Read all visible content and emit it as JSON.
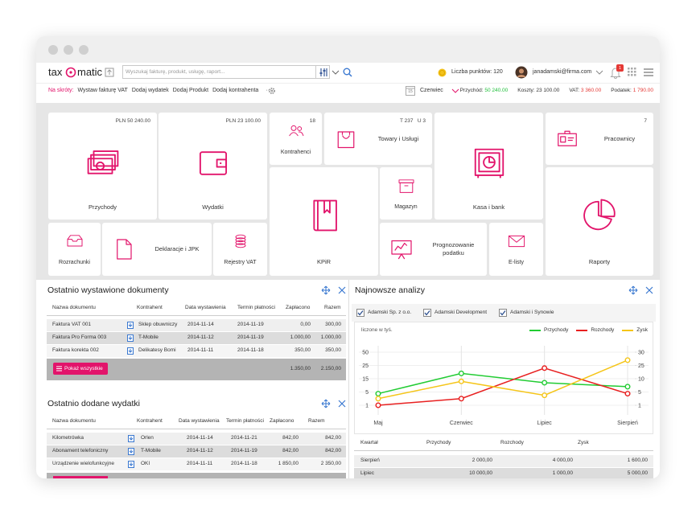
{
  "header": {
    "logo_left": "tax",
    "logo_right": "matic",
    "search_placeholder": "Wyszukaj fakturę, produkt, usługę, raport...",
    "points": "Liczba punktów: 120",
    "user": "janadamski@firma.com",
    "notifications": "1"
  },
  "shortcuts": {
    "label": "Na skróty:",
    "links": [
      "Wystaw fakturę VAT",
      "Dodaj wydatek",
      "Dodaj Produkt",
      "Dodaj kontrahenta"
    ],
    "more": "···"
  },
  "summary": {
    "calendar_day": "15",
    "month": "Czerwiec",
    "items": [
      {
        "label": "Przychód:",
        "value": "50 240.00"
      },
      {
        "label": "Koszty:",
        "value": "23 100.00"
      },
      {
        "label": "VAT:",
        "value": "3 360.00"
      },
      {
        "label": "Podatek:",
        "value": "1 790.00"
      }
    ]
  },
  "tiles": [
    {
      "label": "Przychody",
      "info": "PLN 50 240.00"
    },
    {
      "label": "Wydatki",
      "info": "PLN 23 100.00"
    },
    {
      "label": "Kontrahenci",
      "info": "18"
    },
    {
      "label": "Towary i Usługi",
      "info": "T 237   U 3"
    },
    {
      "label": "Kasa i bank"
    },
    {
      "label": "Pracownicy",
      "info": "7"
    },
    {
      "label": "KPiR"
    },
    {
      "label": "Magazyn"
    },
    {
      "label": "Raporty"
    },
    {
      "label": "Rozrachunki"
    },
    {
      "label": "Deklaracje i JPK"
    },
    {
      "label": "Rejestry VAT"
    },
    {
      "label": "Prognozowanie podatku"
    },
    {
      "label": "E-listy"
    }
  ],
  "documents": {
    "title": "Ostatnio wystawione dokumenty",
    "columns": [
      "Nazwa dokumentu",
      "Kontrahent",
      "Data wystawienia",
      "Termin płatności",
      "Zapłacono",
      "Razem"
    ],
    "rows": [
      [
        "Faktura VAT 001",
        "Sklep obuwniczy",
        "2014-11-14",
        "2014-11-19",
        "0,00",
        "300,00"
      ],
      [
        "Faktura Pro Forma 003",
        "T-Mobile",
        "2014-11-12",
        "2014-11-19",
        "1.000,00",
        "1.000,00"
      ],
      [
        "Faktura korekta 002",
        "Delikatesy Bomi",
        "2014-11-11",
        "2014-11-18",
        "350,00",
        "350,00"
      ]
    ],
    "button": "Pokaż wszystkie",
    "totals": [
      "1.350,00",
      "2.150,00"
    ]
  },
  "expenses": {
    "title": "Ostatnio dodane wydatki",
    "columns": [
      "Nazwa dokumentu",
      "Kontrahent",
      "Data wystawienia",
      "Termin płatności",
      "Zapłacono",
      "Razem"
    ],
    "rows": [
      [
        "Kilometrówka",
        "Orlen",
        "2014-11-14",
        "2014-11-21",
        "842,00",
        "842,00"
      ],
      [
        "Abonament telefoniczny",
        "T-Mobile",
        "2014-11-12",
        "2014-11-19",
        "842,00",
        "842,00"
      ],
      [
        "Urządzenie wielofunkcyjne",
        "OKI",
        "2014-11-11",
        "2014-11-18",
        "1 850,00",
        "2 350,00"
      ]
    ]
  },
  "analysis": {
    "title": "Najnowsze analizy",
    "filters": [
      "Adamski Sp. z o.o.",
      "Adamski Development",
      "Adamski i Synowie"
    ],
    "table": {
      "columns": [
        "Kwartał",
        "Przychody",
        "Rozchody",
        "Zysk"
      ],
      "rows": [
        [
          "Sierpień",
          "2 000,00",
          "4 000,00",
          "1 600,00"
        ],
        [
          "Lipiec",
          "10 000,00",
          "1 000,00",
          "5 000,00"
        ]
      ]
    }
  },
  "chart_data": {
    "type": "line",
    "subtitle": "liczone w tyś.",
    "categories": [
      "Maj",
      "Czerwiec",
      "Lipiec",
      "Sierpień"
    ],
    "series": [
      {
        "name": "Przychody",
        "color": "#22cc33",
        "values": [
          4.5,
          19,
          12,
          9
        ]
      },
      {
        "name": "Rozchody",
        "color": "#e82020",
        "values": [
          1,
          3,
          23,
          4.5
        ]
      },
      {
        "name": "Zysk",
        "color": "#f5c518",
        "axis": "y2",
        "values": [
          3,
          9,
          4,
          27
        ]
      }
    ],
    "ylim": [
      1,
      50
    ],
    "yticks": [
      50,
      25,
      15,
      5,
      1
    ],
    "y2lim": [
      1,
      30
    ],
    "y2ticks": [
      30,
      25,
      10,
      5,
      1
    ],
    "grid": true,
    "legend": "top-right"
  }
}
